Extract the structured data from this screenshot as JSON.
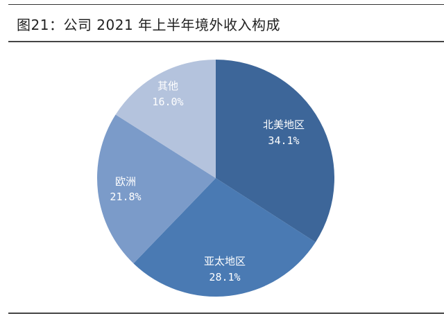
{
  "title": "图21：公司 2021 年上半年境外收入构成",
  "chart_data": {
    "type": "pie",
    "title": "公司 2021 年上半年境外收入构成",
    "figure_label": "图21",
    "categories": [
      "北美地区",
      "亚太地区",
      "欧洲",
      "其他"
    ],
    "values": [
      34.1,
      28.1,
      21.8,
      16.0
    ],
    "value_labels": [
      "34.1%",
      "28.1%",
      "21.8%",
      "16.0%"
    ],
    "colors": [
      "#3d6699",
      "#4a7ab3",
      "#7b9bc9",
      "#b4c3dd"
    ],
    "start_angle": "12 o'clock",
    "direction": "clockwise",
    "legend": "none",
    "data_labels": "inside"
  },
  "slices": [
    {
      "label": "北美地区",
      "pct": "34.1%"
    },
    {
      "label": "亚太地区",
      "pct": "28.1%"
    },
    {
      "label": "欧洲",
      "pct": "21.8%"
    },
    {
      "label": "其他",
      "pct": "16.0%"
    }
  ]
}
